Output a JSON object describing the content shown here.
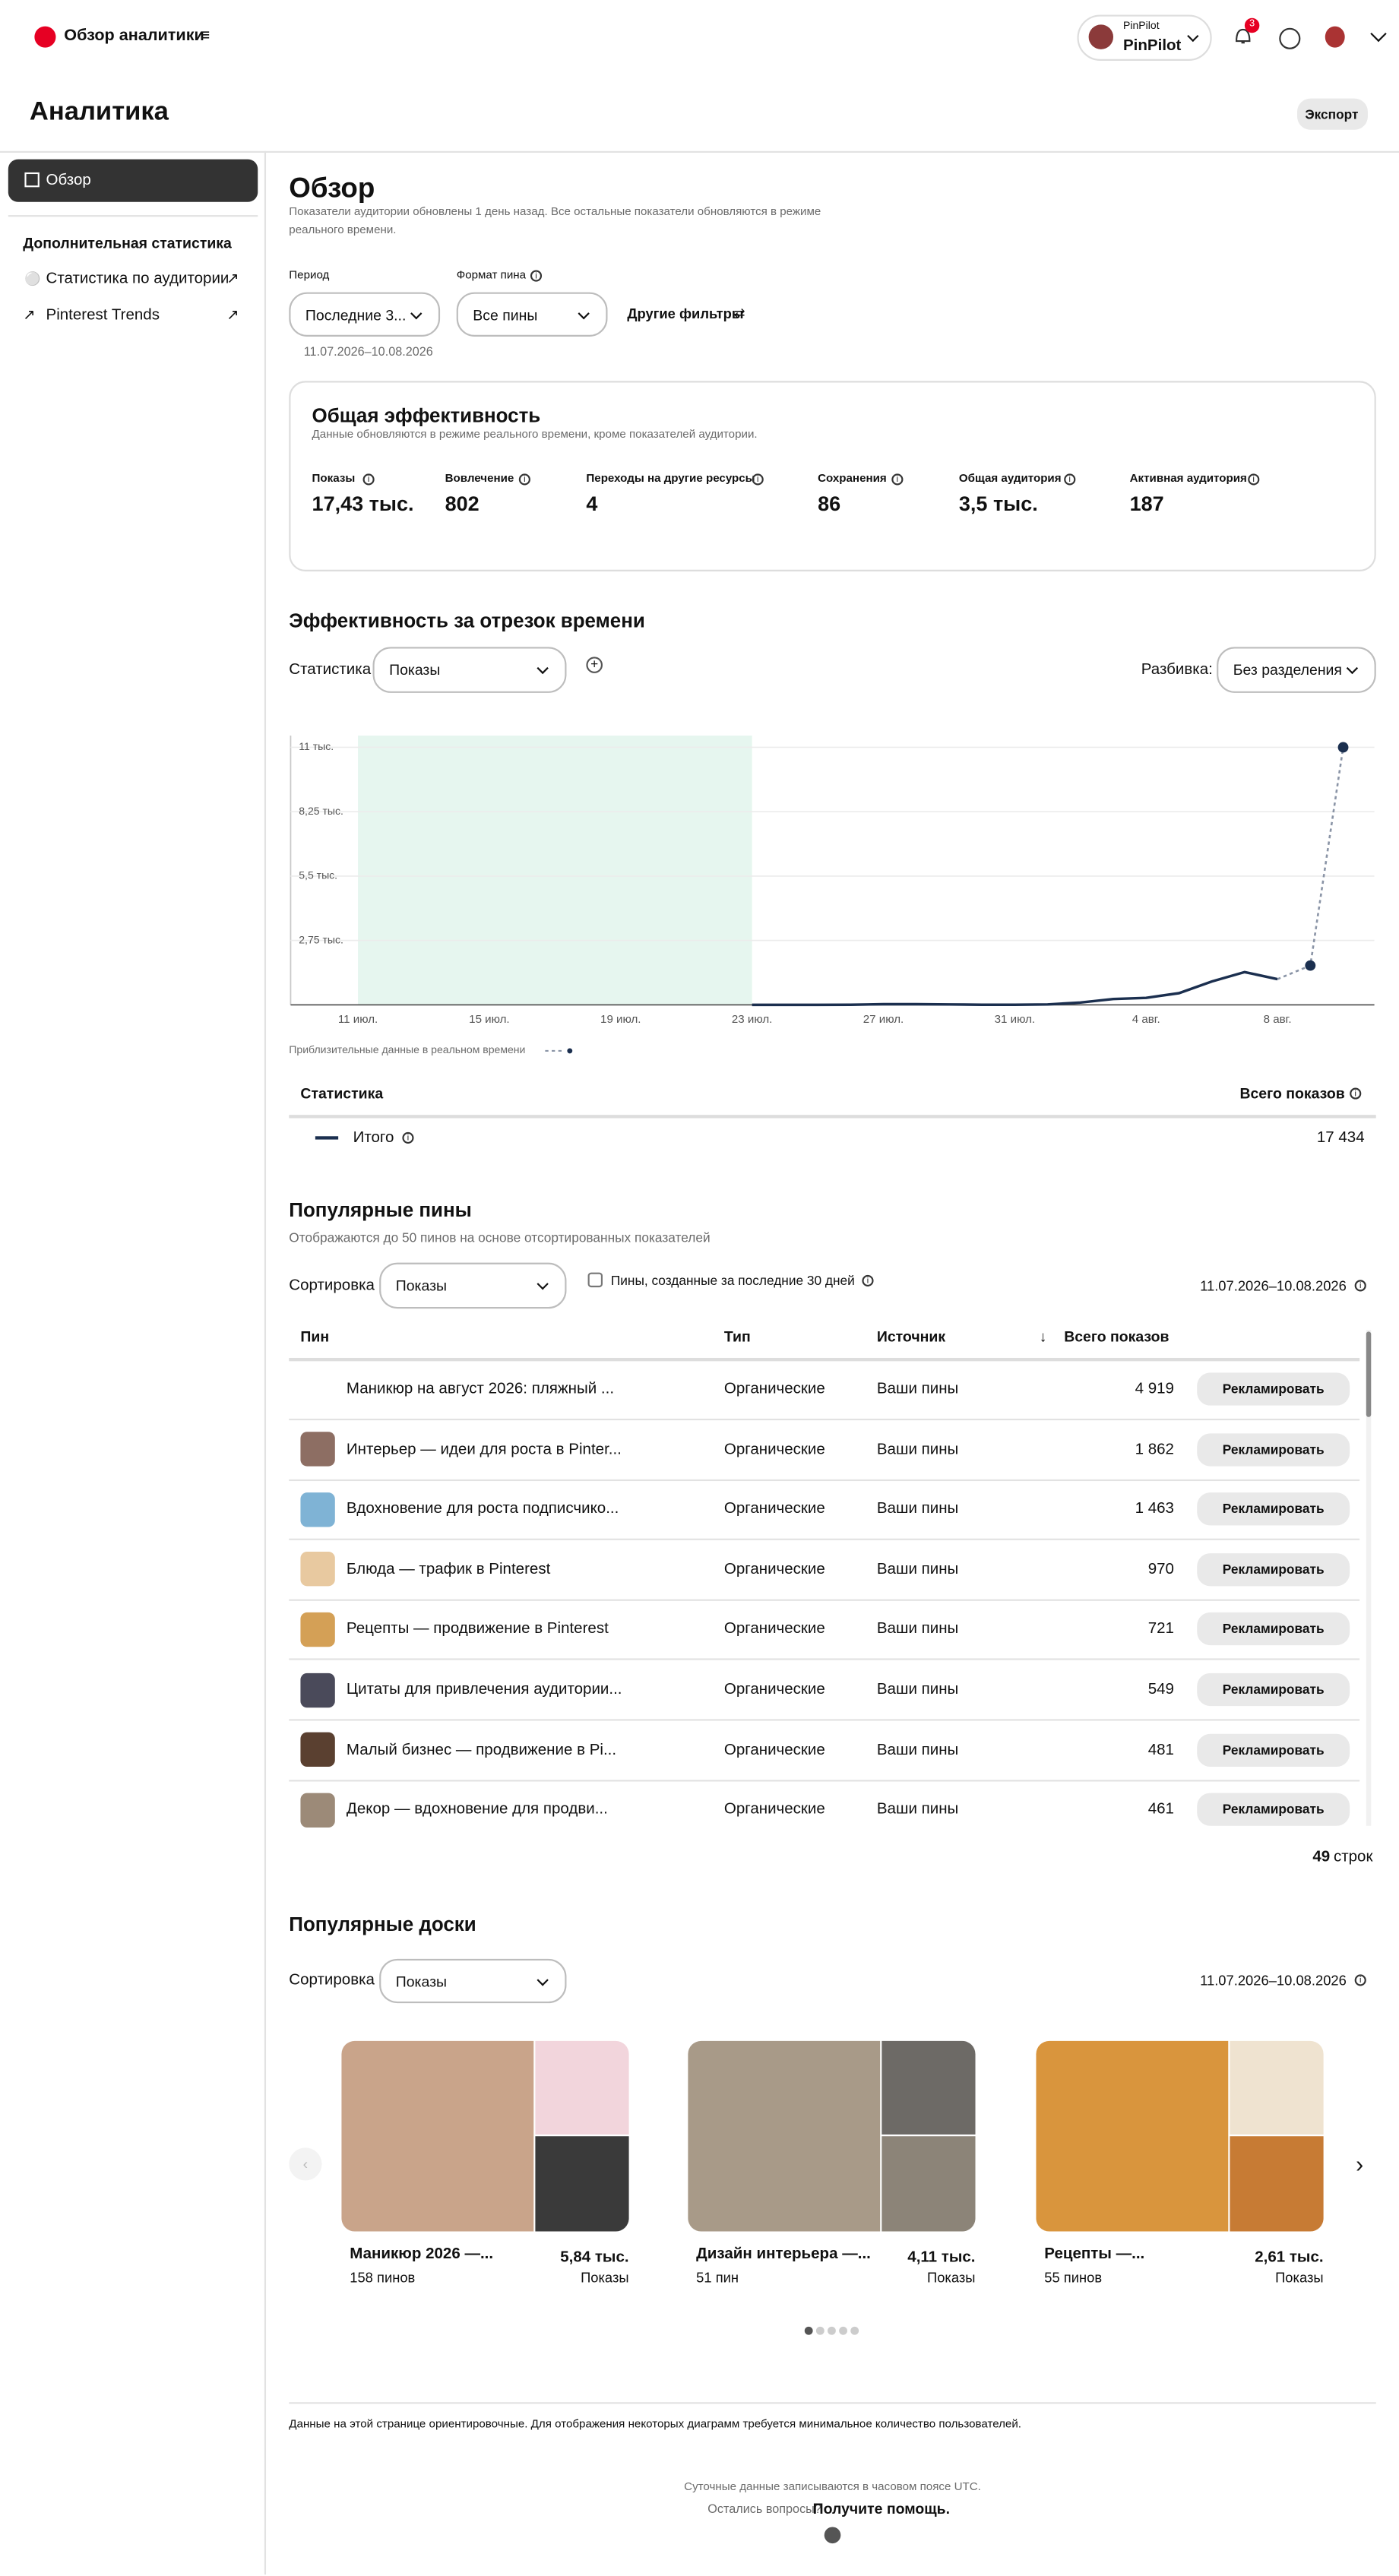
{
  "header": {
    "title": "Обзор аналитики",
    "account_label": "PinPilot",
    "account_name": "PinPilot",
    "notification_count": "3"
  },
  "page": {
    "title": "Аналитика",
    "export_button": "Экспорт"
  },
  "sidebar": {
    "active_item": "Обзор",
    "section_title": "Дополнительная статистика",
    "links": [
      "Статистика по аудитории",
      "Pinterest Trends"
    ]
  },
  "overview": {
    "title": "Обзор",
    "subtitle": "Показатели аудитории обновлены 1 день назад. Все остальные показатели обновляются в режиме реального времени.",
    "period_label": "Период",
    "period_value": "Последние 3...",
    "format_label": "Формат пина",
    "format_value": "Все пины",
    "more_filters": "Другие фильтры",
    "date_range": "11.07.2026–10.08.2026"
  },
  "performance": {
    "title": "Общая эффективность",
    "subtitle": "Данные обновляются в режиме реального времени, кроме показателей аудитории.",
    "metrics": [
      {
        "label": "Показы",
        "value": "17,43 тыс."
      },
      {
        "label": "Вовлечение",
        "value": "802"
      },
      {
        "label": "Переходы на другие ресурсы",
        "value": "4"
      },
      {
        "label": "Сохранения",
        "value": "86"
      },
      {
        "label": "Общая аудитория",
        "value": "3,5 тыс."
      },
      {
        "label": "Активная аудитория",
        "value": "187"
      }
    ]
  },
  "timeline": {
    "title": "Эффективность за отрезок времени",
    "metric_label": "Статистика",
    "metric_value": "Показы",
    "split_label": "Разбивка:",
    "split_value": "Без разделения",
    "table_header": "Статистика",
    "table_total_header": "Всего показов",
    "table_total": "17 434"
  },
  "chart_data": {
    "type": "line",
    "categories": [
      "11 июл.",
      null,
      null,
      null,
      "15 июл.",
      null,
      null,
      null,
      "19 июл.",
      null,
      null,
      null,
      "23 июл.",
      null,
      null,
      null,
      "27 июл.",
      null,
      null,
      null,
      "31 июл.",
      null,
      null,
      null,
      "4 авг.",
      null,
      null,
      null,
      "8 авг.",
      null,
      null
    ],
    "series": [
      {
        "name": "Итого",
        "color": "#1b2f4f",
        "style": "solid",
        "values": [
          null,
          null,
          null,
          null,
          null,
          null,
          null,
          null,
          null,
          null,
          null,
          null,
          0,
          0,
          0,
          5,
          30,
          30,
          20,
          5,
          5,
          20,
          100,
          250,
          300,
          500,
          1000,
          1400,
          1100,
          null,
          null
        ]
      },
      {
        "name": "Приблизительные данные в реальном времени",
        "color": "#8a94a6",
        "style": "dotted",
        "values": [
          null,
          null,
          null,
          null,
          null,
          null,
          null,
          null,
          null,
          null,
          null,
          null,
          null,
          null,
          null,
          null,
          null,
          null,
          null,
          null,
          null,
          null,
          null,
          null,
          null,
          null,
          null,
          null,
          null,
          1680,
          11000
        ]
      }
    ],
    "ylim": [
      0,
      11500
    ],
    "yticks": [
      {
        "value": 2750,
        "label": "2,75 тыс."
      },
      {
        "value": 5500,
        "label": "5,5 тыс."
      },
      {
        "value": 8250,
        "label": "8,25 тыс."
      },
      {
        "value": 11000,
        "label": "11 тыс."
      }
    ],
    "grid": true
  },
  "pins": {
    "title": "Популярные пины",
    "subtitle": "Отображаются до 50 пинов на основе отсортированных показателей",
    "sort_label": "Сортировка",
    "sort_value": "Показы",
    "checkbox_label": "Пины, созданные за последние 30 дней",
    "date_range": "11.07.2026–10.08.2026",
    "columns": [
      "Пин",
      "Тип",
      "Источник",
      "Всего показов"
    ],
    "rows": [
      [
        "Маникюр на август 2026: пляжный ...",
        "Органические",
        "Ваши пины",
        "4 919"
      ],
      [
        "Интерьер — идеи для роста в Pinter...",
        "Органические",
        "Ваши пины",
        "1 862"
      ],
      [
        "Вдохновение для роста подписчико...",
        "Органические",
        "Ваши пины",
        "1 463"
      ],
      [
        "Блюда — трафик в Pinterest",
        "Органические",
        "Ваши пины",
        "970"
      ],
      [
        "Рецепты — продвижение в Pinterest",
        "Органические",
        "Ваши пины",
        "721"
      ],
      [
        "Цитаты для привлечения аудитории...",
        "Органические",
        "Ваши пины",
        "549"
      ],
      [
        "Малый бизнес — продвижение в Pi...",
        "Органические",
        "Ваши пины",
        "481"
      ],
      [
        "Декор — вдохновение для продви...",
        "Органические",
        "Ваши пины",
        "461"
      ]
    ],
    "button": "Рекламировать",
    "row_count": "49",
    "row_count_unit": "строк"
  },
  "boards": {
    "title": "Популярные доски",
    "sort_label": "Сортировка",
    "sort_value": "Показы",
    "date_range": "11.07.2026–10.08.2026",
    "items": [
      {
        "name": "Маникюр 2026 —...",
        "pins": "158 пинов",
        "value": "5,84 тыс.",
        "metric": "Показы"
      },
      {
        "name": "Дизайн интерьера —...",
        "pins": "51 пин",
        "value": "4,11 тыс.",
        "metric": "Показы"
      },
      {
        "name": "Рецепты —...",
        "pins": "55 пинов",
        "value": "2,61 тыс.",
        "metric": "Показы"
      }
    ]
  },
  "footer": {
    "note": "Данные на этой странице ориентировочные. Для отображения некоторых диаграмм требуется минимальное количество пользователей.",
    "timezone": "Суточные данные записываются в часовом поясе UTC.",
    "question": "Остались вопросы?",
    "help": "Получите помощь."
  }
}
